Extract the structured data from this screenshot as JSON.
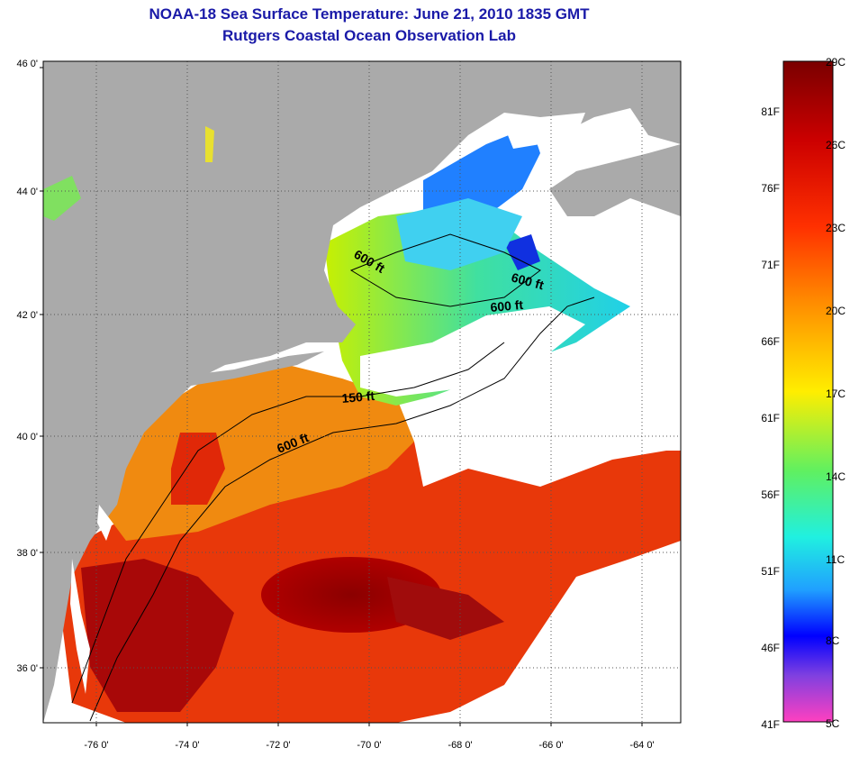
{
  "title": {
    "line1": "NOAA-18 Sea Surface Temperature:  June 21, 2010 1835 GMT",
    "line2": "Rutgers Coastal Ocean Observation Lab"
  },
  "axes": {
    "lat_labels": [
      "46 0'",
      "44 0'",
      "42 0'",
      "40 0'",
      "38 0'",
      "36 0'"
    ],
    "lon_labels": [
      "-76 0'",
      "-74 0'",
      "-72 0'",
      "-70 0'",
      "-68 0'",
      "-66 0'",
      "-64 0'"
    ],
    "lat_range": [
      35,
      46
    ],
    "lon_range": [
      -77,
      -63
    ],
    "grid": true
  },
  "contours": {
    "label_600_north": "600 ft",
    "label_600_east": "600 ft",
    "label_600_mid": "600 ft",
    "label_150": "150 ft",
    "label_600_south": "600 ft"
  },
  "colorbar": {
    "fahrenheit_labels": [
      "81F",
      "76F",
      "71F",
      "66F",
      "61F",
      "56F",
      "51F",
      "46F",
      "41F"
    ],
    "celsius_labels": [
      "29C",
      "26C",
      "23C",
      "20C",
      "17C",
      "14C",
      "11C",
      "8C",
      "5C"
    ],
    "range_c": [
      5,
      29
    ]
  },
  "colors": {
    "land": "#aaaaaa",
    "title": "#1a1aa8",
    "cloud": "#ffffff"
  }
}
